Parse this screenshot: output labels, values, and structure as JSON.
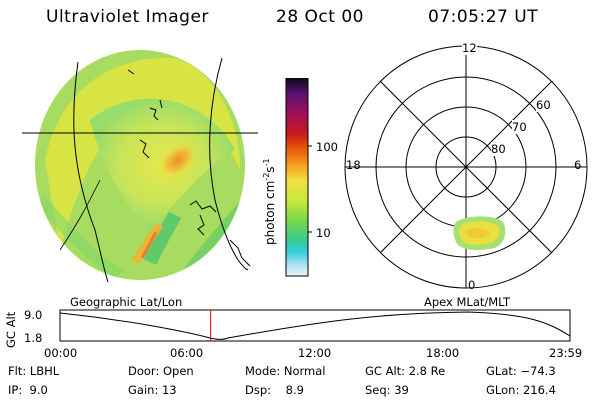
{
  "header": {
    "instrument": "Ultraviolet Imager",
    "date": "28 Oct 00",
    "time": "07:05:27 UT"
  },
  "images": {
    "geographic_label": "Geographic Lat/Lon",
    "apex_label": "Apex MLat/MLT"
  },
  "colorbar": {
    "label": "photon cm",
    "label_exp1": "-2",
    "label_s": "s",
    "label_exp2": "-1",
    "ticks": [
      "100",
      "10"
    ],
    "colors": [
      "#1a0a1a",
      "#5a1070",
      "#a0105a",
      "#c81818",
      "#e85a08",
      "#f4a020",
      "#f0e040",
      "#c8e838",
      "#88d840",
      "#40cc70",
      "#30d0d0",
      "#a8e0f0",
      "#e8f4f8"
    ]
  },
  "polar": {
    "mlt_labels": [
      "12",
      "18",
      "6",
      "0"
    ],
    "lat_labels": [
      "60",
      "70",
      "80"
    ]
  },
  "orbit": {
    "ylabel": "GC Alt",
    "yticks": [
      "9.0",
      "1.8"
    ],
    "xticks": [
      "00:00",
      "06:00",
      "12:00",
      "18:00",
      "23:59"
    ],
    "marker_fraction": 0.2955
  },
  "status": {
    "flt_label": "Flt:",
    "flt_value": "LBHL",
    "ip_label": "IP:",
    "ip_value": "9.0",
    "door_label": "Door:",
    "door_value": "Open",
    "gain_label": "Gain:",
    "gain_value": "13",
    "mode_label": "Mode:",
    "mode_value": "Normal",
    "dsp_label": "Dsp:",
    "dsp_value": "8.9",
    "gcalt_label": "GC Alt:",
    "gcalt_value": "2.8 Re",
    "seq_label": "Seq:",
    "seq_value": "39",
    "glat_label": "GLat:",
    "glat_value": "−74.3",
    "glon_label": "GLon:",
    "glon_value": "216.4"
  }
}
